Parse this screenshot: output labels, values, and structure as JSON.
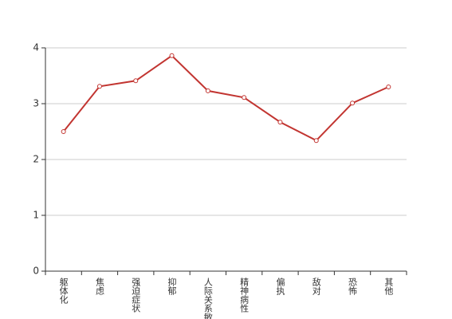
{
  "chart_data": {
    "type": "line",
    "categories": [
      "躯体化",
      "焦虑",
      "强迫症状",
      "抑郁",
      "人际关系敏感",
      "精神病性",
      "偏执",
      "敌对",
      "恐怖",
      "其他"
    ],
    "series": [
      {
        "color": "#c23531",
        "values": [
          2.5,
          3.31,
          3.41,
          3.86,
          3.23,
          3.11,
          2.67,
          2.34,
          3.01,
          3.3
        ]
      }
    ],
    "ylim": [
      0,
      4
    ],
    "yticks": [
      0,
      1,
      2,
      3,
      4
    ],
    "grid": true
  }
}
